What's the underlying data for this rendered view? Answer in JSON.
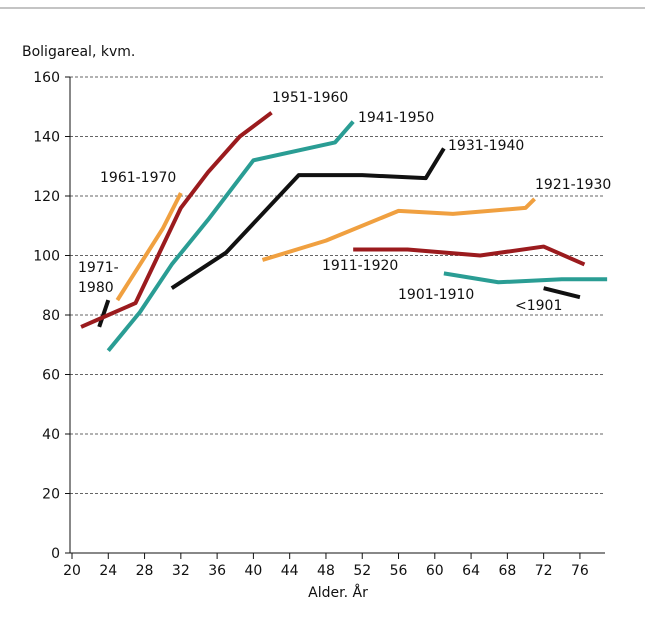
{
  "chart_data": {
    "type": "line",
    "y_label": "Boligareal, kvm.",
    "x_label": "Alder. År",
    "xlim": [
      20,
      79
    ],
    "xticks": [
      20,
      24,
      28,
      32,
      36,
      40,
      44,
      48,
      52,
      56,
      60,
      64,
      68,
      72,
      76
    ],
    "ylim": [
      0,
      160
    ],
    "yticks": [
      0,
      20,
      40,
      60,
      80,
      100,
      120,
      140,
      160
    ],
    "grid": true,
    "series": [
      {
        "name": "1971-1980",
        "color": "#111111",
        "x": [
          23,
          24
        ],
        "values": [
          76,
          85
        ]
      },
      {
        "name": "1961-1970",
        "color": "#f0a040",
        "x": [
          25,
          27.5,
          30,
          32
        ],
        "values": [
          85,
          97,
          109,
          121
        ]
      },
      {
        "name": "1951-1960",
        "color": "#9b1b1e",
        "x": [
          21,
          24,
          27,
          29.5,
          32,
          35,
          38.5,
          42
        ],
        "values": [
          76,
          80,
          84,
          100,
          116,
          128,
          140,
          148
        ]
      },
      {
        "name": "1941-1950",
        "color": "#2a9d94",
        "x": [
          24,
          27.5,
          31,
          35,
          40,
          49,
          51
        ],
        "values": [
          68,
          81,
          97,
          112,
          132,
          138,
          145
        ]
      },
      {
        "name": "1931-1940",
        "color": "#111111",
        "x": [
          31,
          37,
          45,
          52,
          59,
          61
        ],
        "values": [
          89,
          101,
          127,
          127,
          126,
          136
        ]
      },
      {
        "name": "1921-1930",
        "color": "#f0a040",
        "x": [
          41,
          48,
          56,
          62,
          70,
          71
        ],
        "values": [
          98.5,
          105,
          115,
          114,
          116,
          119
        ]
      },
      {
        "name": "1911-1920",
        "color": "#9b1b1e",
        "x": [
          51,
          57,
          65,
          72,
          76.5
        ],
        "values": [
          102,
          102,
          100,
          103,
          97
        ]
      },
      {
        "name": "1901-1910",
        "color": "#2a9d94",
        "x": [
          61,
          67,
          74,
          79
        ],
        "values": [
          94,
          91,
          92,
          92
        ]
      },
      {
        "name": "<1901",
        "color": "#111111",
        "x": [
          72,
          76
        ],
        "values": [
          89,
          86
        ]
      }
    ]
  }
}
